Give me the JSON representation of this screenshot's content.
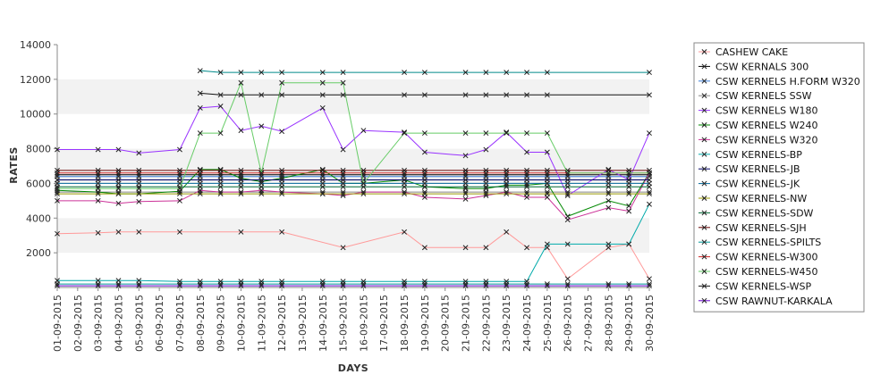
{
  "chart_data": {
    "type": "line",
    "xlabel": "DAYS",
    "ylabel": "RATES",
    "ylim": [
      0,
      14000
    ],
    "yticks": [
      2000,
      4000,
      6000,
      8000,
      10000,
      12000,
      14000
    ],
    "grid": "alternating horizontal bands",
    "legend_position": "right",
    "categories": [
      "01-09-2015",
      "02-09-2015",
      "03-09-2015",
      "04-09-2015",
      "05-09-2015",
      "06-09-2015",
      "07-09-2015",
      "08-09-2015",
      "09-09-2015",
      "10-09-2015",
      "11-09-2015",
      "12-09-2015",
      "13-09-2015",
      "14-09-2015",
      "15-09-2015",
      "16-09-2015",
      "17-09-2015",
      "18-09-2015",
      "19-09-2015",
      "20-09-2015",
      "21-09-2015",
      "22-09-2015",
      "23-09-2015",
      "24-09-2015",
      "25-09-2015",
      "26-09-2015",
      "27-09-2015",
      "28-09-2015",
      "29-09-2015",
      "30-09-2015"
    ],
    "series": [
      {
        "name": "CASHEW CAKE",
        "color": "#ff9999",
        "values": [
          3100,
          null,
          3150,
          3200,
          3200,
          null,
          3200,
          null,
          null,
          3200,
          null,
          3200,
          null,
          null,
          2300,
          null,
          null,
          3200,
          2300,
          null,
          2300,
          2300,
          3200,
          2300,
          2300,
          500,
          null,
          2300,
          2500,
          500
        ]
      },
      {
        "name": "CSW KERNALS 300",
        "color": "#000000",
        "values": [
          6500,
          null,
          6500,
          6500,
          6500,
          null,
          6500,
          6500,
          6500,
          6500,
          6500,
          6500,
          null,
          6500,
          6500,
          6500,
          null,
          6500,
          6500,
          null,
          6500,
          6500,
          6500,
          6500,
          6500,
          6500,
          null,
          6500,
          6500,
          6500
        ]
      },
      {
        "name": "CSW KERNELS H.FORM W320",
        "color": "#3b7dd8",
        "values": [
          6400,
          null,
          6400,
          6400,
          6400,
          null,
          6400,
          6400,
          6400,
          6400,
          6400,
          6400,
          null,
          6400,
          6400,
          6400,
          null,
          6400,
          6400,
          null,
          6400,
          6400,
          6400,
          6400,
          6400,
          6400,
          null,
          6400,
          6400,
          6400
        ]
      },
      {
        "name": "CSW KERNELS SSW",
        "color": "#888888",
        "values": [
          5500,
          null,
          5500,
          5500,
          5500,
          null,
          5500,
          5500,
          5500,
          5500,
          5500,
          5500,
          null,
          5500,
          5500,
          5500,
          null,
          5500,
          5500,
          null,
          5500,
          5500,
          5500,
          5500,
          5500,
          5500,
          null,
          5500,
          5500,
          5500
        ]
      },
      {
        "name": "CSW KERNELS W180",
        "color": "#9933ff",
        "values": [
          7950,
          null,
          7950,
          7950,
          7750,
          null,
          7950,
          10350,
          10450,
          9050,
          9300,
          9000,
          null,
          10350,
          7950,
          9050,
          null,
          8950,
          7800,
          null,
          7600,
          7950,
          8950,
          7800,
          7800,
          5300,
          null,
          6800,
          6200,
          8900
        ]
      },
      {
        "name": "CSW KERNELS W240",
        "color": "#008800",
        "values": [
          5600,
          null,
          5500,
          5400,
          5400,
          null,
          5550,
          6800,
          6800,
          6300,
          6100,
          6300,
          null,
          6800,
          6000,
          6000,
          null,
          6200,
          5800,
          null,
          5700,
          5700,
          5900,
          5900,
          6000,
          4100,
          null,
          5000,
          4700,
          6600
        ]
      },
      {
        "name": "CSW KERNELS W320",
        "color": "#cc3399",
        "values": [
          5000,
          null,
          5000,
          4850,
          4950,
          null,
          5000,
          5600,
          5500,
          5500,
          5600,
          5500,
          null,
          5400,
          5300,
          5500,
          null,
          5500,
          5200,
          null,
          5100,
          5300,
          5500,
          5200,
          5200,
          3900,
          null,
          4600,
          4400,
          6600
        ]
      },
      {
        "name": "CSW KERNELS-BP",
        "color": "#00aaaa",
        "values": [
          400,
          null,
          400,
          400,
          400,
          null,
          350,
          350,
          350,
          350,
          350,
          350,
          null,
          350,
          350,
          350,
          null,
          350,
          350,
          null,
          350,
          350,
          350,
          350,
          2500,
          2500,
          null,
          2500,
          2500,
          4800
        ]
      },
      {
        "name": "CSW KERNELS-JB",
        "color": "#000066",
        "values": [
          6200,
          null,
          6200,
          6200,
          6200,
          null,
          6200,
          6200,
          6200,
          6200,
          6200,
          6200,
          null,
          6200,
          6200,
          6200,
          null,
          6200,
          6200,
          null,
          6200,
          6200,
          6200,
          6200,
          6200,
          6200,
          null,
          6200,
          6200,
          6200
        ]
      },
      {
        "name": "CSW KERNELS-JK",
        "color": "#006699",
        "values": [
          6000,
          null,
          6000,
          6000,
          6000,
          null,
          6000,
          6000,
          6000,
          6000,
          6000,
          6000,
          null,
          6000,
          6000,
          6000,
          null,
          6000,
          6000,
          null,
          6000,
          6000,
          6000,
          6000,
          6000,
          6000,
          null,
          6000,
          6000,
          6000
        ]
      },
      {
        "name": "CSW KERNELS-NW",
        "color": "#999900",
        "values": [
          5400,
          null,
          5400,
          5400,
          5400,
          null,
          5400,
          5400,
          5400,
          5400,
          5400,
          5400,
          null,
          5400,
          5400,
          5400,
          null,
          5400,
          5400,
          null,
          5400,
          5400,
          5400,
          5400,
          5400,
          5400,
          null,
          5400,
          5400,
          5400
        ]
      },
      {
        "name": "CSW KERNELS-SDW",
        "color": "#006633",
        "values": [
          5800,
          null,
          5800,
          5800,
          5800,
          null,
          5800,
          5800,
          5800,
          5800,
          5800,
          5800,
          null,
          5800,
          5800,
          5800,
          null,
          5800,
          5800,
          null,
          5800,
          5800,
          5800,
          5800,
          5800,
          5800,
          null,
          5800,
          5800,
          5800
        ]
      },
      {
        "name": "CSW KERNELS-SJH",
        "color": "#660000",
        "values": [
          6750,
          null,
          6750,
          6750,
          6750,
          null,
          6750,
          6750,
          6750,
          6750,
          6750,
          6750,
          null,
          6750,
          6750,
          6750,
          null,
          6750,
          6750,
          null,
          6750,
          6750,
          6750,
          6750,
          6750,
          6750,
          null,
          6750,
          6750,
          6750
        ]
      },
      {
        "name": "CSW KERNELS-SPILTS",
        "color": "#009999",
        "values": [
          200,
          null,
          200,
          200,
          200,
          null,
          200,
          200,
          200,
          200,
          200,
          200,
          null,
          200,
          200,
          200,
          null,
          200,
          200,
          null,
          200,
          200,
          200,
          200,
          200,
          200,
          null,
          200,
          200,
          200
        ]
      },
      {
        "name": "CSW KERNELS-W300",
        "color": "#cc2222",
        "values": [
          6600,
          null,
          6600,
          6600,
          6600,
          null,
          6600,
          6600,
          6600,
          6600,
          6600,
          6600,
          null,
          6600,
          6600,
          6600,
          null,
          6600,
          6600,
          null,
          6600,
          6600,
          6600,
          6600,
          6600,
          6600,
          null,
          6600,
          6600,
          6600
        ]
      },
      {
        "name": "CSW KERNELS-W450",
        "color": "#66cc66",
        "values": [
          5700,
          null,
          5700,
          5700,
          5700,
          null,
          5700,
          8900,
          8900,
          11800,
          6600,
          11800,
          null,
          11800,
          11800,
          6000,
          null,
          8900,
          8900,
          null,
          8900,
          8900,
          8900,
          8900,
          8900,
          6600,
          null,
          6600,
          6600,
          6600
        ]
      },
      {
        "name": "CSW KERNELS-WSP",
        "color": "#111111",
        "values": [
          null,
          null,
          null,
          null,
          null,
          null,
          null,
          11200,
          11100,
          11100,
          11100,
          11100,
          null,
          11100,
          11100,
          null,
          null,
          11100,
          11100,
          null,
          11100,
          11100,
          11100,
          11100,
          11100,
          null,
          null,
          null,
          null,
          11100
        ]
      },
      {
        "name": "CSW RAWNUT-KARKALA",
        "color": "#6600cc",
        "values": [
          100,
          null,
          100,
          100,
          100,
          null,
          100,
          100,
          100,
          100,
          100,
          100,
          null,
          100,
          100,
          100,
          null,
          100,
          100,
          null,
          100,
          100,
          100,
          100,
          100,
          100,
          null,
          100,
          100,
          100
        ]
      },
      {
        "name": "",
        "color": "#008b8b",
        "values": [
          null,
          null,
          null,
          null,
          null,
          null,
          null,
          12500,
          12400,
          12400,
          12400,
          12400,
          null,
          12400,
          12400,
          null,
          null,
          12400,
          12400,
          null,
          12400,
          12400,
          12400,
          12400,
          12400,
          null,
          null,
          null,
          null,
          12400
        ]
      }
    ]
  }
}
